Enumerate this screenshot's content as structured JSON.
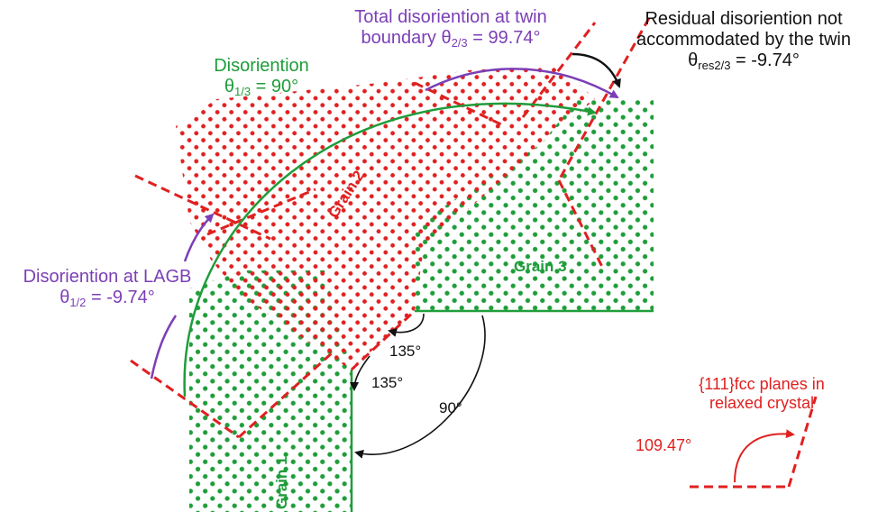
{
  "colors": {
    "red": "#e02020",
    "green": "#1f9d3a",
    "purple": "#7b3fb5",
    "black": "#111111"
  },
  "labels": {
    "total": {
      "line1": "Total disoriention at twin",
      "line2_prefix": "boundary θ",
      "sub": "2/3",
      "line2_suffix": " = 99.74°"
    },
    "residual": {
      "line1": "Residual disoriention not",
      "line2": "accommodated by the twin",
      "prefix": "θ",
      "sub": "res2/3",
      "suffix": " = -9.74°"
    },
    "disorient13": {
      "line1": "Disoriention",
      "prefix": "θ",
      "sub": "1/3",
      "suffix": " = 90°"
    },
    "lagb": {
      "line1": "Disoriention at LAGB",
      "prefix": "θ",
      "sub": "1/2",
      "suffix": " = -9.74°"
    },
    "fcc": {
      "line1": "{111}fcc planes in",
      "line2": "relaxed crystal",
      "angle": "109.47°"
    }
  },
  "angles": {
    "a135_top": "135°",
    "a135_bottom": "135°",
    "a90": "90°"
  },
  "grains": {
    "g1": "Grain 1",
    "g2": "Grain 2",
    "g3": "Grain 3"
  }
}
